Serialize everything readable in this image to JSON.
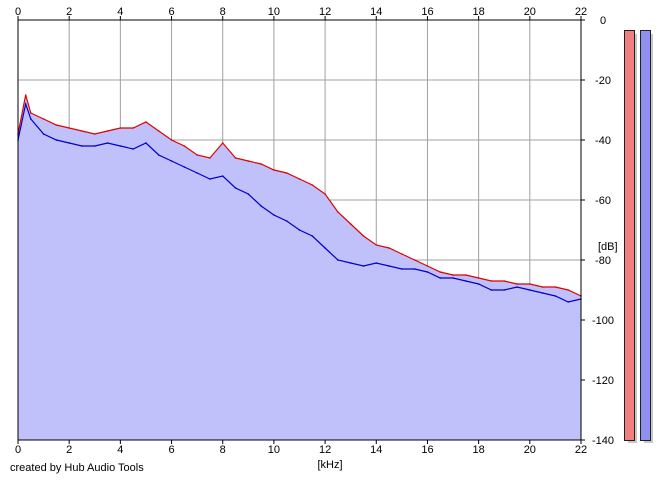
{
  "credit_text": "created by Hub Audio Tools",
  "meters": [
    {
      "name": "left-channel-meter",
      "color": "#f08080"
    },
    {
      "name": "right-channel-meter",
      "color": "#9090f0"
    }
  ],
  "chart_data": {
    "type": "line",
    "xlabel": "[kHz]",
    "ylabel": "[dB]",
    "xlim": [
      0,
      22
    ],
    "ylim": [
      -140,
      0
    ],
    "x_ticks": [
      "0",
      "2",
      "4",
      "6",
      "8",
      "10",
      "12",
      "14",
      "16",
      "18",
      "20",
      "22"
    ],
    "y_ticks": [
      "0",
      "-20",
      "-40",
      "-60",
      "-80",
      "-100",
      "-120",
      "-140"
    ],
    "grid": true,
    "fill_color": "#c0c0fa",
    "series": [
      {
        "color": "#e00000",
        "x": [
          0,
          0.3,
          0.5,
          1,
          1.5,
          2,
          2.5,
          3,
          3.5,
          4,
          4.5,
          5,
          5.5,
          6,
          6.5,
          7,
          7.5,
          8,
          8.5,
          9,
          9.5,
          10,
          10.5,
          11,
          11.5,
          12,
          12.5,
          13,
          13.5,
          14,
          14.5,
          15,
          15.5,
          16,
          16.5,
          17,
          17.5,
          18,
          18.5,
          19,
          19.5,
          20,
          20.5,
          21,
          21.5,
          22
        ],
        "values": [
          -38,
          -25,
          -31,
          -33,
          -35,
          -36,
          -37,
          -38,
          -37,
          -36,
          -36,
          -34,
          -37,
          -40,
          -42,
          -45,
          -46,
          -41,
          -46,
          -47,
          -48,
          -50,
          -51,
          -53,
          -55,
          -58,
          -64,
          -68,
          -72,
          -75,
          -76,
          -78,
          -80,
          -82,
          -84,
          -85,
          -85,
          -86,
          -87,
          -87,
          -88,
          -88,
          -89,
          -89,
          -90,
          -92
        ]
      },
      {
        "color": "#0000c8",
        "x": [
          0,
          0.3,
          0.5,
          1,
          1.5,
          2,
          2.5,
          3,
          3.5,
          4,
          4.5,
          5,
          5.5,
          6,
          6.5,
          7,
          7.5,
          8,
          8.5,
          9,
          9.5,
          10,
          10.5,
          11,
          11.5,
          12,
          12.5,
          13,
          13.5,
          14,
          14.5,
          15,
          15.5,
          16,
          16.5,
          17,
          17.5,
          18,
          18.5,
          19,
          19.5,
          20,
          20.5,
          21,
          21.5,
          22
        ],
        "values": [
          -40,
          -28,
          -33,
          -38,
          -40,
          -41,
          -42,
          -42,
          -41,
          -42,
          -43,
          -41,
          -45,
          -47,
          -49,
          -51,
          -53,
          -52,
          -56,
          -58,
          -62,
          -65,
          -67,
          -70,
          -72,
          -76,
          -80,
          -81,
          -82,
          -81,
          -82,
          -83,
          -83,
          -84,
          -86,
          -86,
          -87,
          -88,
          -90,
          -90,
          -89,
          -90,
          -91,
          -92,
          -94,
          -93
        ]
      }
    ]
  }
}
